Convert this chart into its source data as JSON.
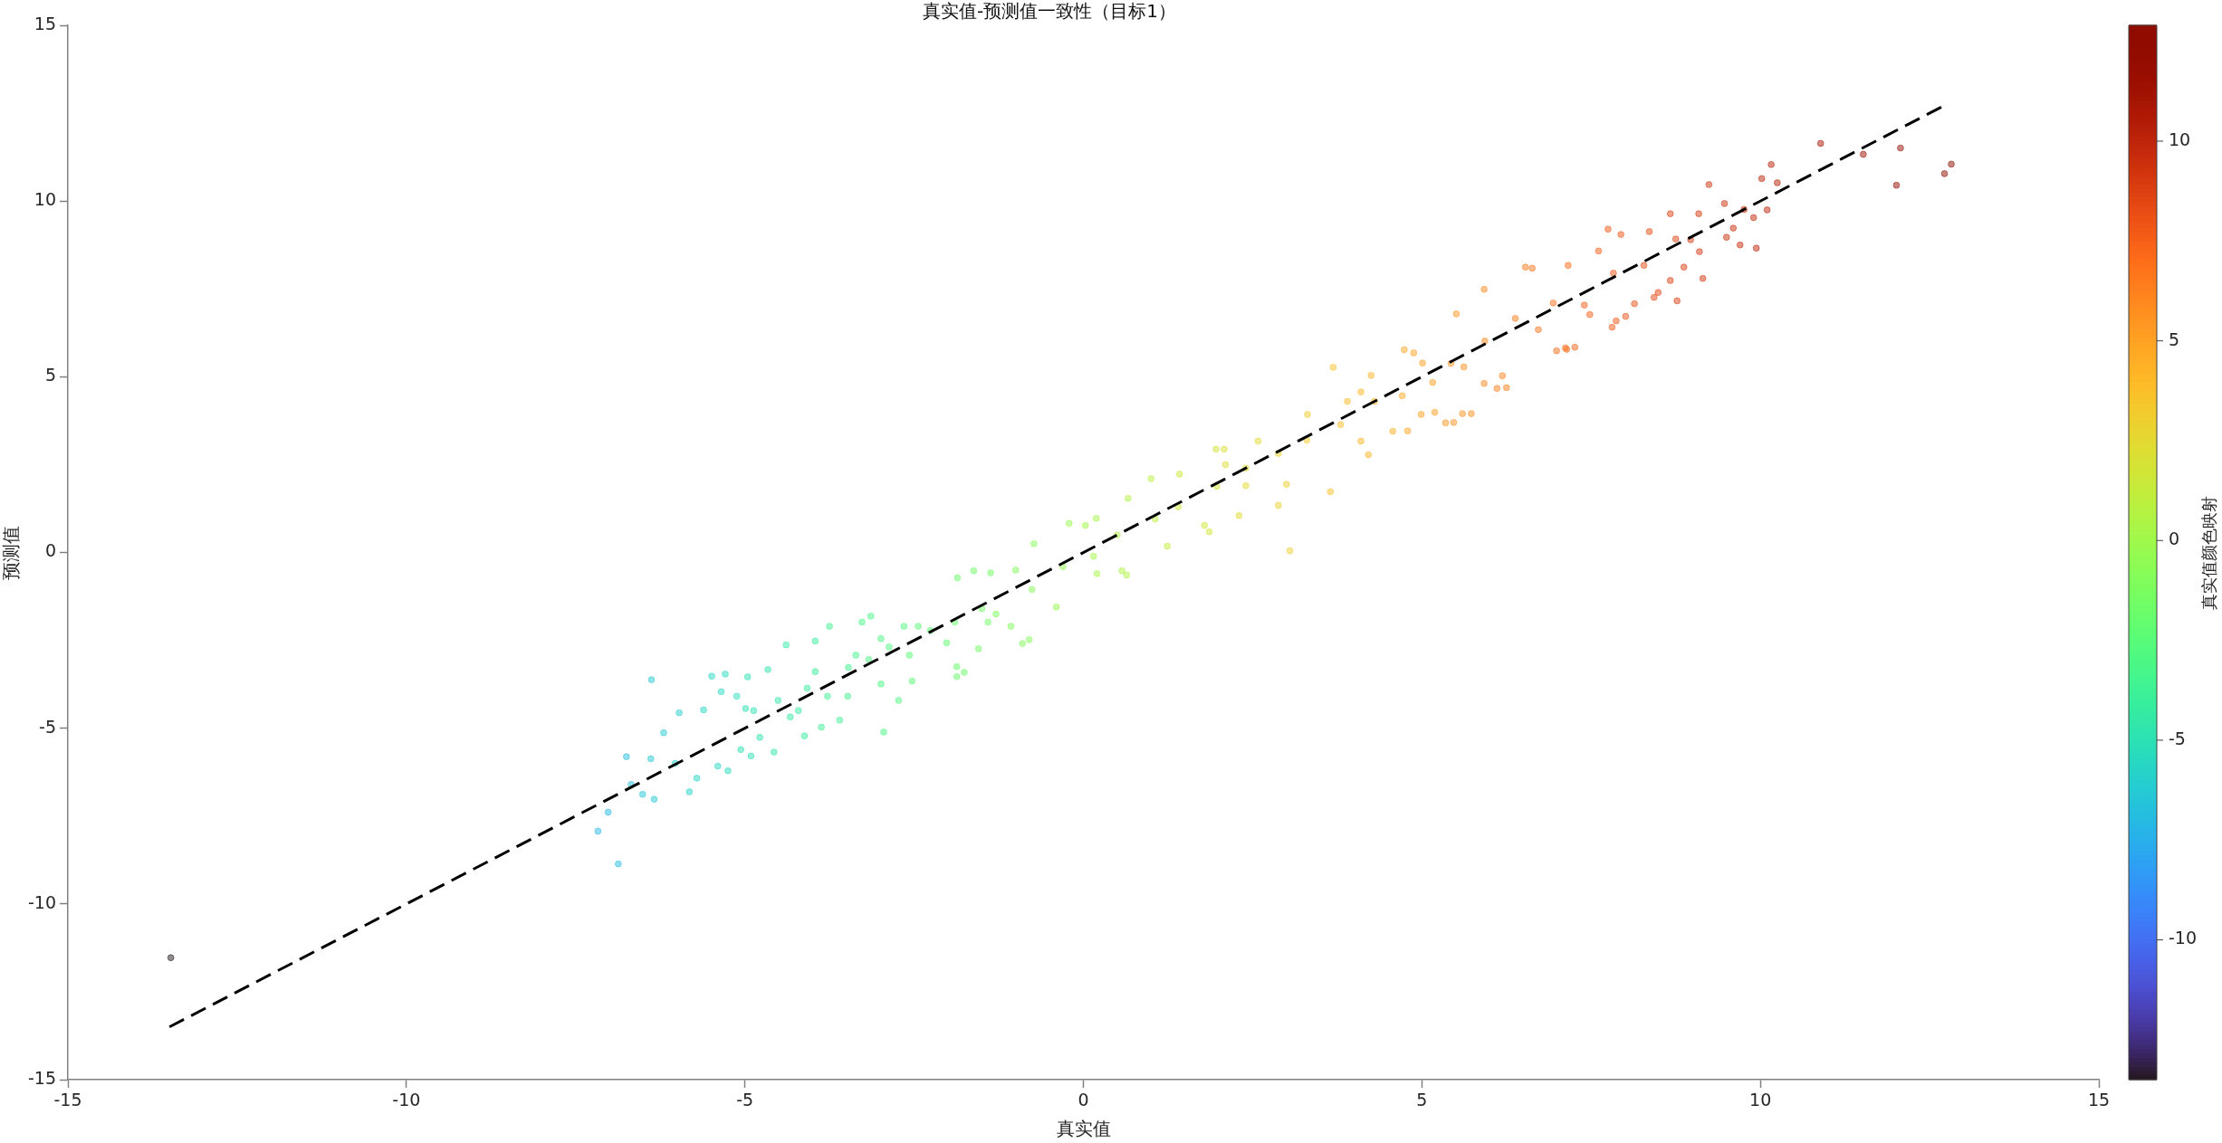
{
  "chart_data": {
    "type": "scatter",
    "title": "真实值-预测值一致性（目标1）",
    "xlabel": "真实值",
    "ylabel": "预测值",
    "clabel": "真实值颜色映射",
    "xlim": [
      -15,
      15
    ],
    "ylim": [
      -15,
      15
    ],
    "xticks": [
      -15,
      -10,
      -5,
      0,
      5,
      10,
      15
    ],
    "yticks": [
      -15,
      -10,
      -5,
      0,
      5,
      10,
      15
    ],
    "clim": [
      -13.5,
      12.9
    ],
    "cticks": [
      -10,
      -5,
      0,
      5,
      10
    ],
    "marker": "circle",
    "series": [
      {
        "type": "scatter",
        "x": [
          -13.48,
          -6.87,
          -7.17,
          -7.02,
          -6.34,
          -6.51,
          -6.68,
          -6.75,
          -6.38,
          -6.39,
          -6.2,
          -5.82,
          -5.71,
          -6.03,
          -5.97,
          -5.61,
          -5.49,
          -5.29,
          -5.25,
          -5.4,
          -5.35,
          -4.96,
          -5.06,
          -4.91,
          -4.57,
          -4.78,
          -4.66,
          -4.39,
          -4.12,
          -3.96,
          -3.75,
          -3.87,
          -3.6,
          -2.95,
          -3.27,
          -2.73,
          -2.53,
          -1.76,
          -0.8,
          -4.99,
          -4.33,
          -4.08,
          -3.47,
          -3.17,
          -2.87,
          -2.26,
          -3.14,
          -2.65,
          -5.12,
          -4.87,
          -4.51,
          -4.21,
          -3.96,
          -3.78,
          -3.48,
          -3.36,
          -2.99,
          -2.99,
          -2.57,
          -2.44,
          -2.02,
          -1.9,
          -1.41,
          -1.29,
          -1.87,
          -1.87,
          -0.9,
          -1.55,
          -1.86,
          -1.62,
          -0.73,
          -0.21,
          -0.4,
          0.64,
          0.19,
          0.66,
          1.0,
          1.24,
          1.86,
          2.3,
          1.96,
          2.08,
          2.88,
          3.05,
          3.65,
          3.69,
          4.21,
          4.57,
          4.79,
          5.47,
          5.73,
          6.25,
          4.74,
          4.25,
          7.14,
          7.26,
          -1.37,
          0.03,
          1.42,
          2.58,
          3.31,
          4.1,
          5.01,
          -1.07,
          0.57,
          1.79,
          3.0,
          4.1,
          5.19,
          5.92,
          -0.76,
          0.15,
          1.06,
          1.97,
          2.88,
          3.8,
          4.71,
          5.62,
          -1.5,
          -0.3,
          0.5,
          1.4,
          2.4,
          3.3,
          4.3,
          -1.0,
          0.2,
          2.4,
          2.1,
          3.9,
          10.89,
          11.52,
          12.07,
          12.01,
          12.72,
          12.82,
          10.16,
          10.02,
          10.25,
          10.1,
          9.9,
          9.76,
          9.94,
          9.7,
          9.6,
          9.47,
          9.5,
          9.24,
          9.09,
          9.1,
          9.15,
          8.97,
          8.67,
          8.75,
          8.77,
          8.87,
          8.67,
          8.49,
          8.43,
          8.36,
          7.75,
          7.94,
          8.14,
          8.01,
          7.81,
          7.87,
          7.61,
          7.16,
          7.48,
          6.99,
          7.12,
          7.4,
          6.53,
          6.63,
          5.92,
          5.51,
          5.35,
          5.6,
          6.11,
          6.19,
          4.88,
          4.99,
          6.38,
          5.93,
          6.72,
          5.43,
          5.16,
          6.94,
          7.83,
          8.28
        ],
        "values": [
          -11.53,
          -8.86,
          -7.93,
          -7.39,
          -7.02,
          -6.88,
          -6.6,
          -5.81,
          -3.62,
          -5.87,
          -5.13,
          -6.81,
          -6.42,
          -6.0,
          -4.56,
          -4.48,
          -3.52,
          -3.46,
          -6.21,
          -6.08,
          -3.96,
          -3.54,
          -5.61,
          -5.79,
          -5.68,
          -5.26,
          -3.33,
          -2.63,
          -5.22,
          -2.52,
          -2.1,
          -4.97,
          -4.77,
          -5.11,
          -1.98,
          -4.21,
          -3.66,
          -3.41,
          -2.48,
          -4.44,
          -4.68,
          -3.86,
          -3.27,
          -3.04,
          -2.69,
          -2.22,
          -1.81,
          -2.1,
          -4.09,
          -4.5,
          -4.21,
          -4.5,
          -3.39,
          -4.09,
          -4.09,
          -2.92,
          -3.74,
          -2.45,
          -2.92,
          -2.1,
          -2.57,
          -1.98,
          -1.98,
          -1.75,
          -3.53,
          -3.25,
          -2.59,
          -2.74,
          -0.72,
          -0.52,
          0.25,
          0.83,
          -1.55,
          -0.64,
          0.97,
          1.54,
          2.1,
          0.18,
          0.59,
          1.05,
          2.94,
          2.94,
          1.34,
          0.05,
          1.73,
          5.27,
          2.78,
          3.45,
          3.46,
          3.7,
          3.95,
          4.69,
          5.77,
          5.04,
          5.78,
          5.84,
          -0.58,
          0.77,
          2.23,
          3.17,
          3.93,
          4.57,
          5.39,
          -2.1,
          -0.52,
          0.77,
          1.94,
          3.17,
          3.99,
          4.81,
          -1.05,
          -0.11,
          0.95,
          1.88,
          2.82,
          3.64,
          4.46,
          5.28,
          -1.6,
          -0.4,
          0.5,
          1.3,
          2.4,
          3.2,
          4.3,
          -0.5,
          -0.6,
          1.9,
          2.5,
          4.3,
          11.64,
          11.33,
          11.51,
          10.45,
          10.78,
          11.05,
          11.04,
          10.64,
          10.52,
          9.75,
          9.53,
          9.76,
          8.66,
          8.75,
          9.23,
          9.93,
          8.97,
          10.47,
          9.64,
          8.56,
          7.8,
          8.9,
          9.64,
          8.92,
          7.16,
          8.12,
          7.74,
          7.4,
          7.26,
          9.13,
          9.2,
          9.05,
          7.08,
          6.72,
          6.41,
          6.59,
          8.58,
          8.17,
          6.77,
          5.74,
          5.82,
          7.04,
          8.12,
          8.09,
          7.49,
          6.79,
          3.69,
          3.95,
          4.67,
          5.03,
          5.68,
          3.93,
          6.66,
          6.02,
          6.34,
          5.38,
          4.84,
          7.1,
          7.95,
          8.17
        ],
        "cvalues": [
          -13.48,
          -6.87,
          -7.17,
          -7.02,
          -6.34,
          -6.51,
          -6.68,
          -6.75,
          -6.38,
          -6.39,
          -6.2,
          -5.82,
          -5.71,
          -6.03,
          -5.97,
          -5.61,
          -5.49,
          -5.29,
          -5.25,
          -5.4,
          -5.35,
          -4.96,
          -5.06,
          -4.91,
          -4.57,
          -4.78,
          -4.66,
          -4.39,
          -4.12,
          -3.96,
          -3.75,
          -3.87,
          -3.6,
          -2.95,
          -3.27,
          -2.73,
          -2.53,
          -1.76,
          -0.8,
          -4.99,
          -4.33,
          -4.08,
          -3.47,
          -3.17,
          -2.87,
          -2.26,
          -3.14,
          -2.65,
          -5.12,
          -4.87,
          -4.51,
          -4.21,
          -3.96,
          -3.78,
          -3.48,
          -3.36,
          -2.99,
          -2.99,
          -2.57,
          -2.44,
          -2.02,
          -1.9,
          -1.41,
          -1.29,
          -1.87,
          -1.87,
          -0.9,
          -1.55,
          -1.86,
          -1.62,
          -0.73,
          -0.21,
          -0.4,
          0.64,
          0.19,
          0.66,
          1.0,
          1.24,
          1.86,
          2.3,
          1.96,
          2.08,
          2.88,
          3.05,
          3.65,
          3.69,
          4.21,
          4.57,
          4.79,
          5.47,
          5.73,
          6.25,
          4.74,
          4.25,
          7.14,
          7.26,
          -1.37,
          0.03,
          1.42,
          2.58,
          3.31,
          4.1,
          5.01,
          -1.07,
          0.57,
          1.79,
          3.0,
          4.1,
          5.19,
          5.92,
          -0.76,
          0.15,
          1.06,
          1.97,
          2.88,
          3.8,
          4.71,
          5.62,
          -1.5,
          -0.3,
          0.5,
          1.4,
          2.4,
          3.3,
          4.3,
          -1.0,
          0.2,
          2.4,
          2.1,
          3.9,
          10.89,
          11.52,
          12.07,
          12.01,
          12.72,
          12.82,
          10.16,
          10.02,
          10.25,
          10.1,
          9.9,
          9.76,
          9.94,
          9.7,
          9.6,
          9.47,
          9.5,
          9.24,
          9.09,
          9.1,
          9.15,
          8.97,
          8.67,
          8.75,
          8.77,
          8.87,
          8.67,
          8.49,
          8.43,
          8.36,
          7.75,
          7.94,
          8.14,
          8.01,
          7.81,
          7.87,
          7.61,
          7.16,
          7.48,
          6.99,
          7.12,
          7.4,
          6.53,
          6.63,
          5.92,
          5.51,
          5.35,
          5.6,
          6.11,
          6.19,
          4.88,
          4.99,
          6.38,
          5.93,
          6.72,
          5.43,
          5.16,
          6.94,
          7.83,
          8.28
        ],
        "colors": [
          "#23171b",
          "#26bde1",
          "#26bde1",
          "#26bde1",
          "#27cad2",
          "#27cad2",
          "#26bde1",
          "#26bde1",
          "#27cad2",
          "#27cad2",
          "#27cad2",
          "#27d7c3",
          "#27d7c3",
          "#27cad2",
          "#27cad2",
          "#27d7c3",
          "#27d7c3",
          "#27d7c3",
          "#2ee1b3",
          "#27d7c3",
          "#27d7c3",
          "#2ee1b3",
          "#2ee1b3",
          "#2ee1b3",
          "#35eba2",
          "#2ee1b3",
          "#2ee1b3",
          "#35eba2",
          "#35eba2",
          "#35eba2",
          "#42f293",
          "#42f293",
          "#42f293",
          "#4ef983",
          "#4ef983",
          "#4ef983",
          "#5ffc75",
          "#6ffe67",
          "#83fc5c",
          "#2ee1b3",
          "#35eba2",
          "#35eba2",
          "#42f293",
          "#4ef983",
          "#4ef983",
          "#5ffc75",
          "#4ef983",
          "#4ef983",
          "#2ee1b3",
          "#2ee1b3",
          "#35eba2",
          "#35eba2",
          "#35eba2",
          "#42f293",
          "#42f293",
          "#42f293",
          "#4ef983",
          "#4ef983",
          "#5ffc75",
          "#5ffc75",
          "#5ffc75",
          "#6ffe67",
          "#6ffe67",
          "#83fc5c",
          "#6ffe67",
          "#6ffe67",
          "#83fc5c",
          "#6ffe67",
          "#6ffe67",
          "#6ffe67",
          "#83fc5c",
          "#96fa50",
          "#96fa50",
          "#aaf547",
          "#aaf547",
          "#aaf547",
          "#bdef3e",
          "#bdef3e",
          "#cee638",
          "#dfdc32",
          "#cee638",
          "#dfdc32",
          "#eccf2e",
          "#eccf2e",
          "#f9c229",
          "#f9c229",
          "#fcb326",
          "#fcb326",
          "#ffa323",
          "#ff9220",
          "#ff9220",
          "#ff801d",
          "#ffa323",
          "#fcb326",
          "#fa6e1a",
          "#fa6e1a",
          "#6ffe67",
          "#aaf547",
          "#cee638",
          "#dfdc32",
          "#eccf2e",
          "#fcb326",
          "#ffa323",
          "#83fc5c",
          "#aaf547",
          "#cee638",
          "#eccf2e",
          "#fcb326",
          "#ffa323",
          "#ff9220",
          "#83fc5c",
          "#aaf547",
          "#bdef3e",
          "#cee638",
          "#eccf2e",
          "#f9c229",
          "#ffa323",
          "#ff9220",
          "#6ffe67",
          "#96fa50",
          "#aaf547",
          "#cee638",
          "#dfdc32",
          "#eccf2e",
          "#fcb326",
          "#83fc5c",
          "#aaf547",
          "#dfdc32",
          "#dfdc32",
          "#f9c229",
          "#aa1804",
          "#9b0f00",
          "#960e00",
          "#960e00",
          "#900d00",
          "#900d00",
          "#b82008",
          "#b82008",
          "#b82008",
          "#b82008",
          "#c92e0c",
          "#c92e0c",
          "#b82008",
          "#c92e0c",
          "#c92e0c",
          "#c92e0c",
          "#c92e0c",
          "#d93b10",
          "#d93b10",
          "#d93b10",
          "#d93b10",
          "#d93b10",
          "#d93b10",
          "#d93b10",
          "#d93b10",
          "#d93b10",
          "#d93b10",
          "#e74c14",
          "#e74c14",
          "#e74c14",
          "#f45c17",
          "#f45c17",
          "#e74c14",
          "#e74c14",
          "#f45c17",
          "#f45c17",
          "#f45c17",
          "#fa6e1a",
          "#f45c17",
          "#fa6e1a",
          "#fa6e1a",
          "#f45c17",
          "#ff801d",
          "#fa6e1a",
          "#ff9220",
          "#ff9220",
          "#ff9220",
          "#ff9220",
          "#ff801d",
          "#ff801d",
          "#ffa323",
          "#ffa323",
          "#ff801d",
          "#ff9220",
          "#fa6e1a",
          "#ff9220",
          "#ffa323",
          "#fa6e1a",
          "#f45c17",
          "#e74c14"
        ]
      },
      {
        "type": "line",
        "x": [
          -13.5,
          12.7
        ],
        "values": [
          -13.5,
          12.7
        ],
        "color": "#000000",
        "line_style": "dashed",
        "marker": "none"
      }
    ]
  }
}
